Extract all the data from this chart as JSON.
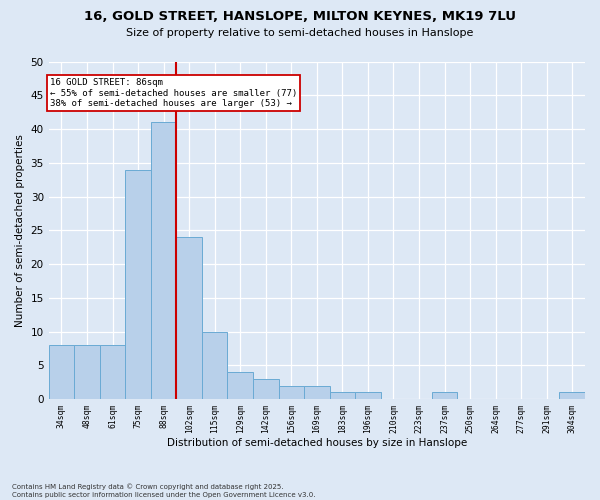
{
  "title1": "16, GOLD STREET, HANSLOPE, MILTON KEYNES, MK19 7LU",
  "title2": "Size of property relative to semi-detached houses in Hanslope",
  "xlabel": "Distribution of semi-detached houses by size in Hanslope",
  "ylabel": "Number of semi-detached properties",
  "categories": [
    "34sqm",
    "48sqm",
    "61sqm",
    "75sqm",
    "88sqm",
    "102sqm",
    "115sqm",
    "129sqm",
    "142sqm",
    "156sqm",
    "169sqm",
    "183sqm",
    "196sqm",
    "210sqm",
    "223sqm",
    "237sqm",
    "250sqm",
    "264sqm",
    "277sqm",
    "291sqm",
    "304sqm"
  ],
  "values": [
    8,
    8,
    8,
    34,
    41,
    24,
    10,
    4,
    3,
    2,
    2,
    1,
    1,
    0,
    0,
    1,
    0,
    0,
    0,
    0,
    1
  ],
  "bar_color": "#b8d0ea",
  "bar_edge_color": "#6aaad4",
  "vline_value": 4.5,
  "vline_color": "#cc0000",
  "annotation_title": "16 GOLD STREET: 86sqm",
  "annotation_line1": "← 55% of semi-detached houses are smaller (77)",
  "annotation_line2": "38% of semi-detached houses are larger (53) →",
  "ylim": [
    0,
    50
  ],
  "yticks": [
    0,
    5,
    10,
    15,
    20,
    25,
    30,
    35,
    40,
    45,
    50
  ],
  "footnote": "Contains HM Land Registry data © Crown copyright and database right 2025.\nContains public sector information licensed under the Open Government Licence v3.0.",
  "bg_color": "#dde8f5",
  "grid_color": "#ffffff"
}
